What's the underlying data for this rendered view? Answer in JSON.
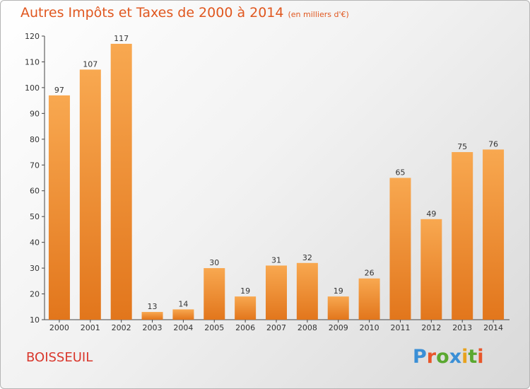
{
  "header": {
    "title": "Autres Impôts et Taxes de 2000 à 2014",
    "unit": "(en milliers d'€)"
  },
  "footer": {
    "commune": "BOISSEUIL",
    "logo": "Proxiti"
  },
  "colors": {
    "title": "#e0571f",
    "commune": "#d9372c",
    "bar_light": "#f8a850",
    "bar_dark": "#e2761c",
    "logo_letters": [
      "#3a8fd6",
      "#e8562a",
      "#5aa830",
      "#3a8fd6",
      "#e8a21e",
      "#5aa830",
      "#e8562a"
    ]
  },
  "chart_data": {
    "type": "bar",
    "categories": [
      "2000",
      "2001",
      "2002",
      "2003",
      "2004",
      "2005",
      "2006",
      "2007",
      "2008",
      "2009",
      "2010",
      "2011",
      "2012",
      "2013",
      "2014"
    ],
    "values": [
      97,
      107,
      117,
      13,
      14,
      30,
      19,
      31,
      32,
      19,
      26,
      65,
      49,
      75,
      76
    ],
    "title": "Autres Impôts et Taxes de 2000 à 2014",
    "ylim": [
      10,
      120
    ],
    "yticks": [
      10,
      20,
      30,
      40,
      50,
      60,
      70,
      80,
      90,
      100,
      110,
      120
    ],
    "grid": false,
    "legend": "none"
  }
}
